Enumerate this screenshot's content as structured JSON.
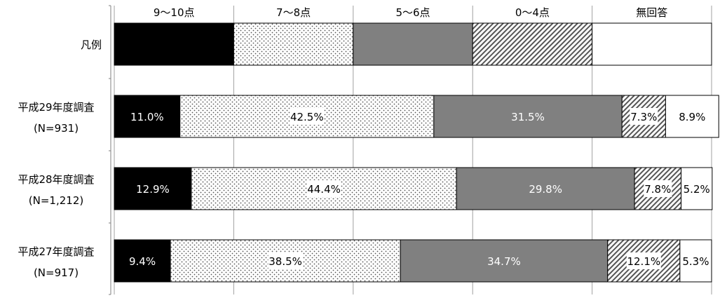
{
  "chart_data": {
    "type": "bar",
    "orientation": "horizontal",
    "stacked": true,
    "percent": true,
    "xlim": [
      0,
      100
    ],
    "grid": true,
    "legend_row_label": "凡例",
    "category_labels": [
      [
        "平成29年度調査",
        "(N=931)"
      ],
      [
        "平成28年度調査",
        "(N=1,212)"
      ],
      [
        "平成27年度調査",
        "(N=917)"
      ]
    ],
    "series": [
      {
        "name": "9～10点",
        "pattern": "solid-black",
        "values": [
          11.0,
          12.9,
          9.4
        ],
        "labels": [
          "11.0%",
          "12.9%",
          "9.4%"
        ]
      },
      {
        "name": "7～8点",
        "pattern": "dots",
        "values": [
          42.5,
          44.4,
          38.5
        ],
        "labels": [
          "42.5%",
          "44.4%",
          "38.5%"
        ]
      },
      {
        "name": "5～6点",
        "pattern": "solid-gray",
        "values": [
          31.5,
          29.8,
          34.7
        ],
        "labels": [
          "31.5%",
          "29.8%",
          "34.7%"
        ]
      },
      {
        "name": "0～4点",
        "pattern": "diagonal-hatch",
        "values": [
          7.3,
          7.8,
          12.1
        ],
        "labels": [
          "7.3%",
          "7.8%",
          "12.1%"
        ]
      },
      {
        "name": "無回答",
        "pattern": "white",
        "values": [
          8.9,
          5.2,
          5.3
        ],
        "labels": [
          "8.9%",
          "5.2%",
          "5.3%"
        ]
      }
    ],
    "colors": {
      "black": "#000000",
      "gray": "#808080",
      "dots": "#555555",
      "hatch": "#555555",
      "white": "#ffffff",
      "grid": "#999999"
    }
  }
}
